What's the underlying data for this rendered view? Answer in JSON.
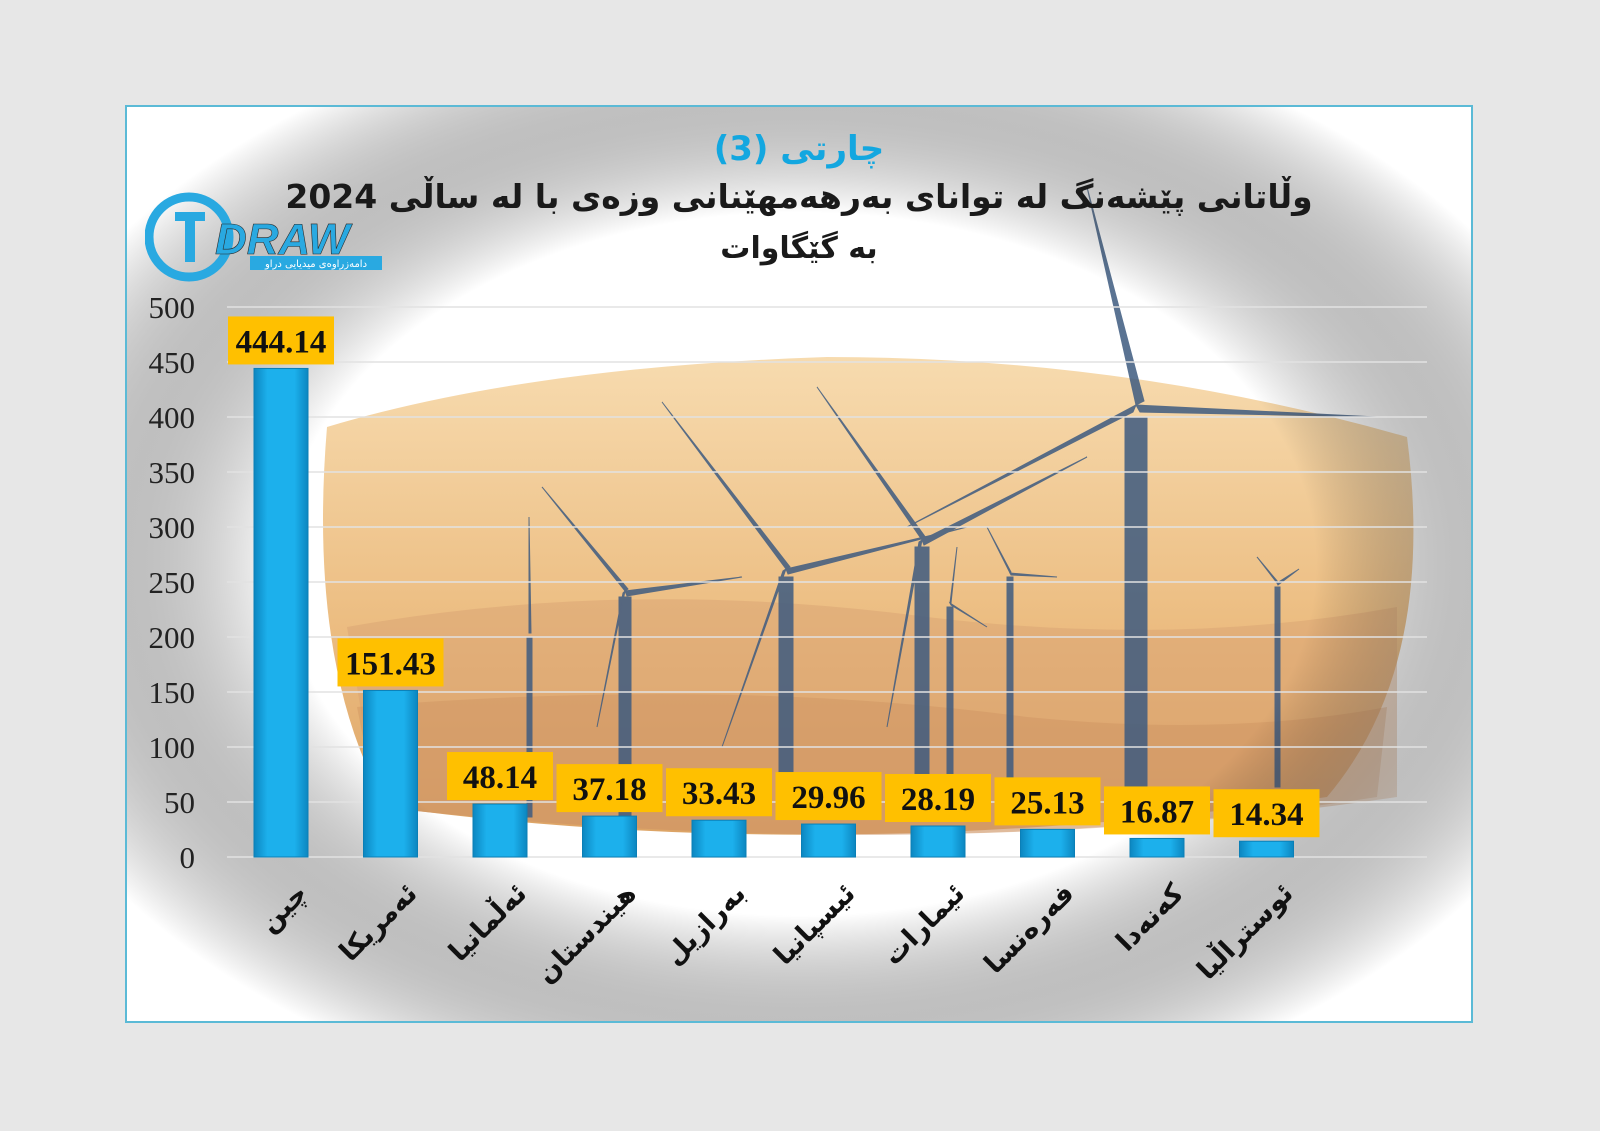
{
  "header": {
    "chart_number": "چارتی (3)",
    "title": "وڵاتانی پێشەنگ لە توانای بەرهەمهێنانی وزەی با لە ساڵی 2024",
    "subtitle": "بە گێگاوات"
  },
  "logo": {
    "text": "DRAW",
    "tagline": "دامەزراوەی میدیایی دراو",
    "colors": {
      "circle": "#29a9e1",
      "letters": "#29a9e1",
      "shadow": "#3c3c3c"
    }
  },
  "colors": {
    "bar": "#19a9e6",
    "bar_dark": "#0b7fb6",
    "label_bg": "#ffc000",
    "title_accent": "#13a7e0",
    "frame_border": "#5bbad6",
    "gridline": "#e2e2e2",
    "sky_top": "#f6d7a6",
    "sky_bottom": "#e3a55b",
    "turbine": "#3e5b80"
  },
  "chart_data": {
    "type": "bar",
    "categories": [
      "چین",
      "ئەمریکا",
      "ئەڵمانیا",
      "هیندستان",
      "بەرازیل",
      "ئیسپانیا",
      "ئیمارات",
      "فەرەنسا",
      "کەنەدا",
      "ئوستراڵیا"
    ],
    "values": [
      444.14,
      151.43,
      48.14,
      37.18,
      33.43,
      29.96,
      28.19,
      25.13,
      16.87,
      14.34
    ],
    "data_labels": [
      "444.14",
      "151.43",
      "48.14",
      "37.18",
      "33.43",
      "29.96",
      "28.19",
      "25.13",
      "16.87",
      "14.34"
    ],
    "yticks": [
      "0",
      "50",
      "100",
      "150",
      "200",
      "250",
      "300",
      "350",
      "400",
      "450",
      "500"
    ],
    "ylim": [
      0,
      500
    ],
    "grid": true,
    "legend": "none",
    "background_image": "wind-turbines-at-sunset"
  }
}
